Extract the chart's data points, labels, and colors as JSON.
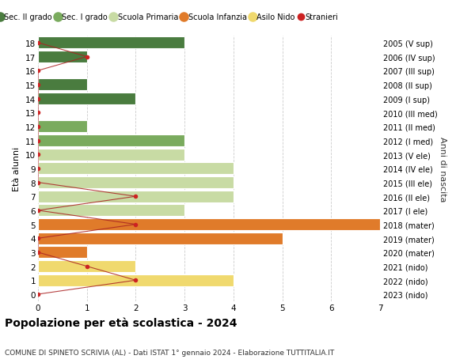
{
  "title": "Popolazione per età scolastica - 2024",
  "subtitle": "COMUNE DI SPINETO SCRIVIA (AL) - Dati ISTAT 1° gennaio 2024 - Elaborazione TUTTITALIA.IT",
  "ylabel": "Età alunni",
  "right_label": "Anni di nascita",
  "ages": [
    0,
    1,
    2,
    3,
    4,
    5,
    6,
    7,
    8,
    9,
    10,
    11,
    12,
    13,
    14,
    15,
    16,
    17,
    18
  ],
  "right_labels": [
    "2023 (nido)",
    "2022 (nido)",
    "2021 (nido)",
    "2020 (mater)",
    "2019 (mater)",
    "2018 (mater)",
    "2017 (I ele)",
    "2016 (II ele)",
    "2015 (III ele)",
    "2014 (IV ele)",
    "2013 (V ele)",
    "2012 (I med)",
    "2011 (II med)",
    "2010 (III med)",
    "2009 (I sup)",
    "2008 (II sup)",
    "2007 (III sup)",
    "2006 (IV sup)",
    "2005 (V sup)"
  ],
  "bar_values": [
    0,
    4,
    2,
    1,
    5,
    7,
    3,
    4,
    4,
    4,
    3,
    3,
    1,
    0,
    2,
    1,
    0,
    1,
    3
  ],
  "bar_colors": [
    "#f0d96e",
    "#f0d96e",
    "#f0d96e",
    "#e07b2a",
    "#e07b2a",
    "#e07b2a",
    "#c8dba4",
    "#c8dba4",
    "#c8dba4",
    "#c8dba4",
    "#c8dba4",
    "#7aab5e",
    "#7aab5e",
    "#7aab5e",
    "#4a7c3f",
    "#4a7c3f",
    "#4a7c3f",
    "#4a7c3f",
    "#4a7c3f"
  ],
  "stranieri_values": [
    0,
    2,
    1,
    0,
    0,
    2,
    0,
    2,
    0,
    0,
    0,
    0,
    0,
    0,
    0,
    0,
    0,
    1,
    0
  ],
  "xlim": [
    0,
    7
  ],
  "ylim": [
    -0.5,
    18.5
  ],
  "legend_entries": [
    {
      "label": "Sec. II grado",
      "color": "#4a7c3f",
      "type": "circle"
    },
    {
      "label": "Sec. I grado",
      "color": "#7aab5e",
      "type": "circle"
    },
    {
      "label": "Scuola Primaria",
      "color": "#c8dba4",
      "type": "circle"
    },
    {
      "label": "Scuola Infanzia",
      "color": "#e07b2a",
      "type": "circle"
    },
    {
      "label": "Asilo Nido",
      "color": "#f0d96e",
      "type": "circle"
    },
    {
      "label": "Stranieri",
      "color": "#cc2222",
      "type": "dot"
    }
  ],
  "background_color": "#ffffff",
  "grid_color": "#cccccc",
  "bar_height": 0.85,
  "stranieri_line_color": "#aa2222",
  "stranieri_dot_color": "#cc2222"
}
